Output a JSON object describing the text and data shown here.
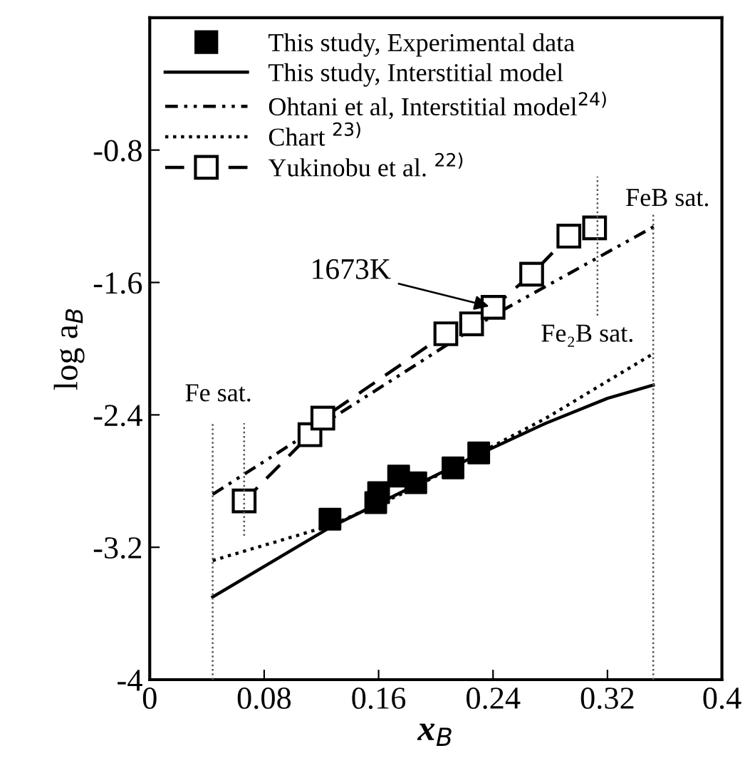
{
  "chart_data": {
    "type": "line",
    "xlabel": "x$_{B}$",
    "ylabel": "log a$_{B}$",
    "xlim": [
      0,
      0.4
    ],
    "xticks": [
      0,
      0.08,
      0.16,
      0.24,
      0.32,
      0.4
    ],
    "ylim": [
      -4,
      0
    ],
    "yticks": [
      -4,
      -3.2,
      -2.4,
      -1.6,
      -0.8
    ],
    "grid": false,
    "legend": "top left",
    "series": [
      {
        "name": "This study, Experimental data",
        "type": "scatter",
        "marker": "square",
        "color": "#000000",
        "x": [
          0.126,
          0.158,
          0.16,
          0.174,
          0.186,
          0.212,
          0.23
        ],
        "values": [
          -3.03,
          -2.93,
          -2.87,
          -2.77,
          -2.81,
          -2.72,
          -2.63
        ]
      },
      {
        "name": "This study, Interstitial model",
        "line_style": "solid",
        "color": "#000000",
        "x": [
          0.044,
          0.126,
          0.227,
          0.277,
          0.32,
          0.352
        ],
        "values": [
          -3.5,
          -3.08,
          -2.65,
          -2.45,
          -2.3,
          -2.22
        ]
      },
      {
        "name": "Ohtani et al, Interstitial model$^{24)}$",
        "line_style": "dashdot",
        "color": "#000000",
        "x": [
          0.044,
          0.24,
          0.353
        ],
        "values": [
          -2.88,
          -1.8,
          -1.26
        ]
      },
      {
        "name": "Chart $^{23)}$",
        "line_style": "dotted",
        "color": "#000000",
        "x": [
          0.044,
          0.126,
          0.178,
          0.277,
          0.352
        ],
        "values": [
          -3.28,
          -3.07,
          -2.87,
          -2.42,
          -2.03
        ]
      },
      {
        "name": "Yukinobu et al. $^{22)}$",
        "line_style": "dashed",
        "marker": "square",
        "color": "#000000",
        "x": [
          0.066,
          0.112,
          0.121,
          0.207,
          0.225,
          0.24,
          0.267,
          0.293,
          0.311
        ],
        "values": [
          -2.92,
          -2.52,
          -2.42,
          -1.91,
          -1.85,
          -1.75,
          -1.55,
          -1.32,
          -1.27
        ]
      },
      {
        "line_style": "dotted",
        "color": "#555555",
        "x": [
          0.044,
          0.044
        ],
        "values": [
          -4,
          -2.45
        ]
      },
      {
        "line_style": "dotted",
        "color": "#555555",
        "x": [
          0.066,
          0.066
        ],
        "values": [
          -3.13,
          -2.45
        ]
      },
      {
        "line_style": "dotted",
        "color": "#555555",
        "x": [
          0.313,
          0.313
        ],
        "values": [
          -1.8,
          -0.96
        ]
      },
      {
        "line_style": "dotted",
        "color": "#555555",
        "x": [
          0.352,
          0.352
        ],
        "values": [
          -4,
          -1.19
        ]
      }
    ],
    "annotations": [
      {
        "text": "1673K",
        "x": 0.24,
        "y": -1.75
      },
      "Fe sat.",
      "FeB sat.",
      "Fe₂B sat."
    ]
  }
}
